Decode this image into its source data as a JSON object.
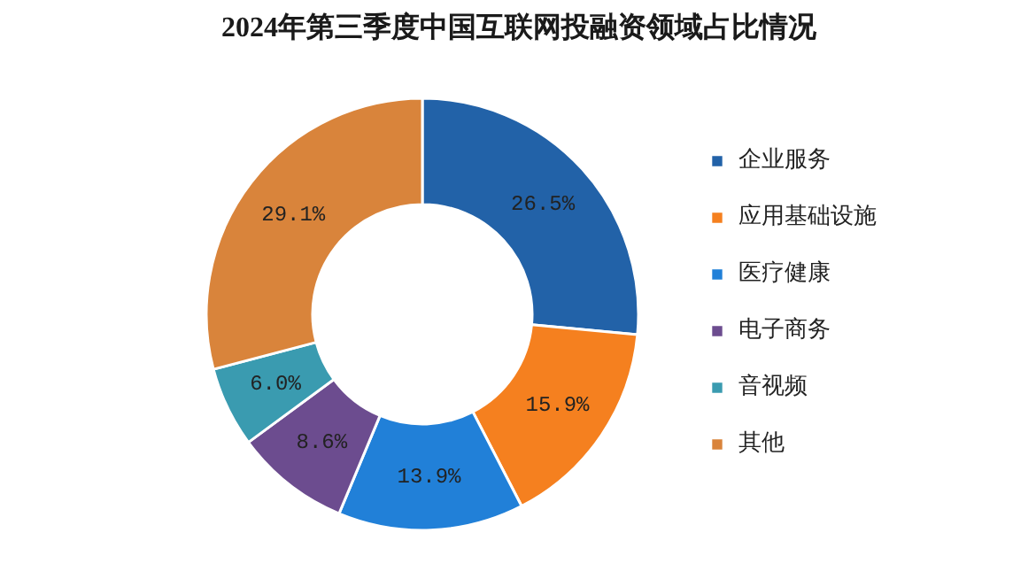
{
  "chart_data": {
    "type": "donut",
    "title": "2024年第三季度中国互联网投融资领域占比情况",
    "categories": [
      "企业服务",
      "应用基础设施",
      "医疗健康",
      "电子商务",
      "音视频",
      "其他"
    ],
    "values": [
      26.5,
      15.9,
      13.9,
      8.6,
      6.0,
      29.1
    ],
    "value_labels": [
      "26.5%",
      "15.9%",
      "13.9%",
      "8.6%",
      "6.0%",
      "29.1%"
    ],
    "colors": [
      "#2262a8",
      "#f5801f",
      "#2180d8",
      "#6c4c8f",
      "#3a9bb0",
      "#d9843b"
    ],
    "legend": "right"
  }
}
